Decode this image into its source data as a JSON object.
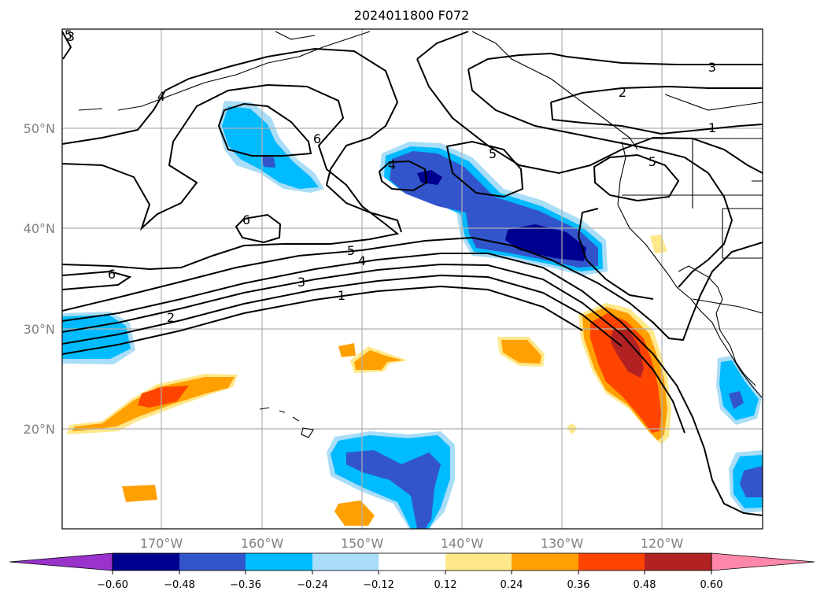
{
  "title": "2024011800 F072",
  "map": {
    "lat_labels": [
      "50°N",
      "40°N",
      "30°N",
      "20°N"
    ],
    "lon_labels": [
      "170°W",
      "160°W",
      "150°W",
      "140°W",
      "130°W",
      "120°W"
    ],
    "contour_labels": [
      "6",
      "6",
      "6",
      "5",
      "5",
      "5",
      "5",
      "4",
      "4",
      "4",
      "3",
      "3",
      "3",
      "2",
      "2",
      "1",
      "1"
    ]
  },
  "colorbar": {
    "ticks": [
      "−0.60",
      "−0.48",
      "−0.36",
      "−0.24",
      "−0.12",
      "0.12",
      "0.24",
      "0.36",
      "0.48",
      "0.60"
    ],
    "colors": [
      "#9933cc",
      "#000090",
      "#3355cc",
      "#00bbff",
      "#aaddf7",
      "#ffffff",
      "#ffe88a",
      "#ffa000",
      "#ff4400",
      "#b22222",
      "#ff88aa"
    ]
  }
}
